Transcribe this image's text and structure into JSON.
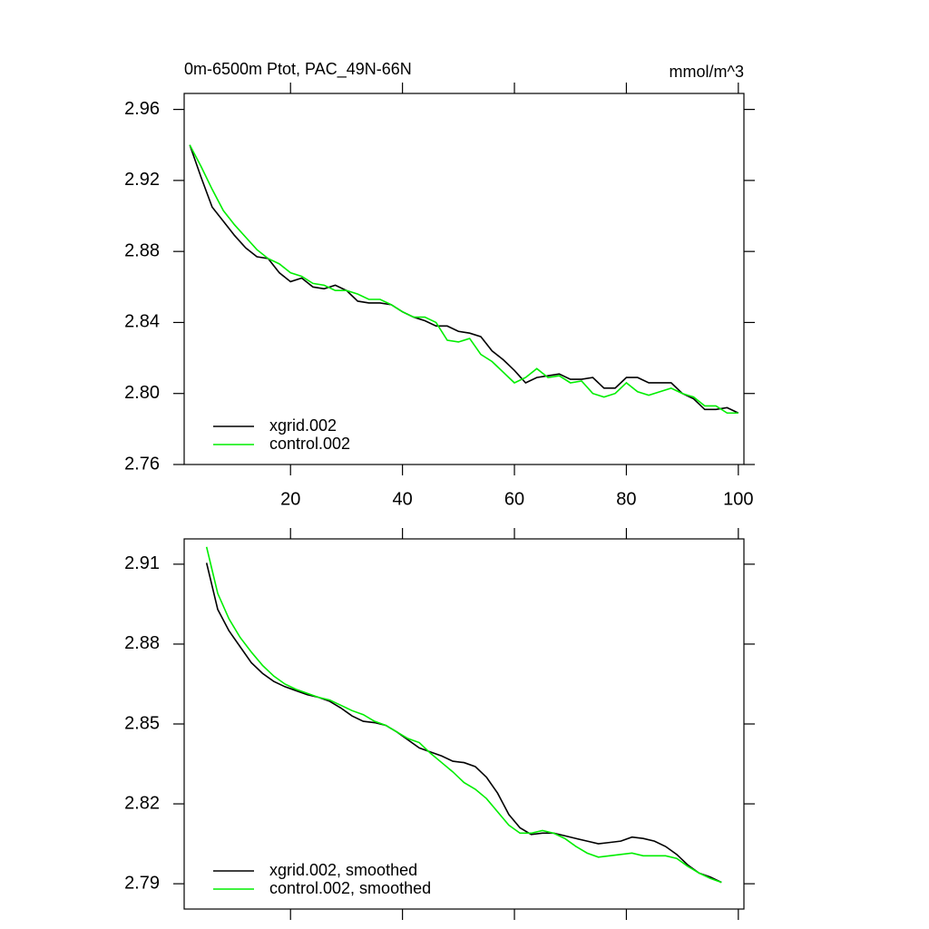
{
  "chart_data": [
    {
      "type": "line",
      "title": "0m-6500m Ptot, PAC_49N-66N",
      "units": "mmol/m^3",
      "x": [
        2,
        4,
        6,
        8,
        10,
        12,
        14,
        16,
        18,
        20,
        22,
        24,
        26,
        28,
        30,
        32,
        34,
        36,
        38,
        40,
        42,
        44,
        46,
        48,
        50,
        52,
        54,
        56,
        58,
        60,
        62,
        64,
        66,
        68,
        70,
        72,
        74,
        76,
        78,
        80,
        82,
        84,
        86,
        88,
        90,
        92,
        94,
        96,
        98,
        100
      ],
      "series": [
        {
          "name": "xgrid.002",
          "color": "#000000",
          "values": [
            2.94,
            2.922,
            2.905,
            2.897,
            2.889,
            2.882,
            2.877,
            2.876,
            2.868,
            2.863,
            2.865,
            2.86,
            2.859,
            2.861,
            2.858,
            2.852,
            2.851,
            2.851,
            2.85,
            2.846,
            2.843,
            2.841,
            2.838,
            2.838,
            2.835,
            2.834,
            2.832,
            2.824,
            2.819,
            2.813,
            2.806,
            2.809,
            2.81,
            2.811,
            2.808,
            2.808,
            2.809,
            2.803,
            2.803,
            2.809,
            2.809,
            2.806,
            2.806,
            2.806,
            2.8,
            2.797,
            2.791,
            2.791,
            2.792,
            2.789
          ]
        },
        {
          "name": "control.002",
          "color": "#00ee00",
          "values": [
            2.94,
            2.928,
            2.915,
            2.903,
            2.895,
            2.888,
            2.881,
            2.876,
            2.873,
            2.868,
            2.866,
            2.862,
            2.861,
            2.858,
            2.858,
            2.856,
            2.853,
            2.853,
            2.85,
            2.846,
            2.843,
            2.843,
            2.84,
            2.83,
            2.829,
            2.831,
            2.822,
            2.818,
            2.812,
            2.806,
            2.809,
            2.814,
            2.809,
            2.81,
            2.806,
            2.807,
            2.8,
            2.798,
            2.8,
            2.806,
            2.801,
            2.799,
            2.801,
            2.803,
            2.8,
            2.798,
            2.793,
            2.793,
            2.789,
            2.789
          ]
        }
      ],
      "xlim": [
        1,
        101
      ],
      "ylim": [
        2.76,
        2.969
      ],
      "xticks": [
        20,
        40,
        60,
        80,
        100
      ],
      "xticklabels": true,
      "yticks": [
        2.76,
        {
          "value": 2.8,
          "label": "2.80"
        },
        2.84,
        2.88,
        2.92,
        2.96
      ],
      "legend": "lower left"
    },
    {
      "type": "line",
      "x": [
        5,
        7,
        9,
        11,
        13,
        15,
        17,
        19,
        21,
        23,
        25,
        27,
        29,
        31,
        33,
        35,
        37,
        39,
        41,
        43,
        45,
        47,
        49,
        51,
        53,
        55,
        57,
        59,
        61,
        63,
        65,
        67,
        69,
        71,
        73,
        75,
        77,
        79,
        81,
        83,
        85,
        87,
        89,
        91,
        93,
        95,
        97
      ],
      "series": [
        {
          "name": "xgrid.002, smoothed",
          "color": "#000000",
          "values": [
            2.9105,
            2.893,
            2.885,
            2.879,
            2.873,
            2.869,
            2.866,
            2.864,
            2.8625,
            2.861,
            2.86,
            2.8585,
            2.856,
            2.853,
            2.851,
            2.8505,
            2.8495,
            2.847,
            2.844,
            2.841,
            2.8395,
            2.838,
            2.836,
            2.8355,
            2.834,
            2.83,
            2.824,
            2.816,
            2.811,
            2.8085,
            2.809,
            2.809,
            2.808,
            2.807,
            2.806,
            2.805,
            2.8055,
            2.806,
            2.8075,
            2.807,
            2.806,
            2.804,
            2.801,
            2.797,
            2.794,
            2.7925,
            2.7905
          ]
        },
        {
          "name": "control.002, smoothed",
          "color": "#00ee00",
          "values": [
            2.9165,
            2.899,
            2.8895,
            2.8825,
            2.877,
            2.872,
            2.868,
            2.865,
            2.863,
            2.8615,
            2.86,
            2.859,
            2.857,
            2.855,
            2.8535,
            2.851,
            2.8495,
            2.847,
            2.8445,
            2.843,
            2.839,
            2.8355,
            2.832,
            2.828,
            2.8255,
            2.822,
            2.817,
            2.812,
            2.809,
            2.809,
            2.81,
            2.809,
            2.807,
            2.804,
            2.8015,
            2.8,
            2.8005,
            2.801,
            2.8015,
            2.8005,
            2.8005,
            2.8005,
            2.7995,
            2.7965,
            2.794,
            2.792,
            2.7905
          ]
        }
      ],
      "xlim": [
        1,
        101
      ],
      "ylim": [
        2.7805,
        2.9195
      ],
      "xticks": [
        20,
        40,
        60,
        80,
        100
      ],
      "xticklabels": false,
      "yticks": [
        2.79,
        2.82,
        2.85,
        2.88,
        2.91
      ],
      "legend": "lower left"
    }
  ]
}
